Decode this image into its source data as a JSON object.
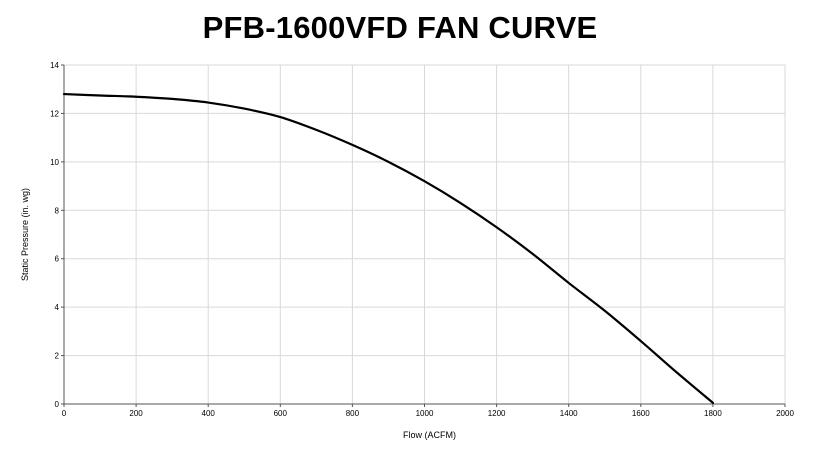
{
  "chart_data": {
    "type": "line",
    "title": "PFB-1600VFD FAN CURVE",
    "xlabel": "Flow (ACFM)",
    "ylabel": "Static Pressure (in. wg)",
    "xlim": [
      0,
      2000
    ],
    "ylim": [
      0,
      14
    ],
    "xticks": [
      "0",
      "200",
      "400",
      "600",
      "800",
      "1000",
      "1200",
      "1400",
      "1600",
      "1800",
      "2000"
    ],
    "yticks": [
      "0",
      "2",
      "4",
      "6",
      "8",
      "10",
      "12",
      "14"
    ],
    "grid": true,
    "series": [
      {
        "color": "#000000",
        "x": [
          0,
          100,
          200,
          300,
          400,
          500,
          600,
          700,
          800,
          900,
          1000,
          1100,
          1200,
          1300,
          1400,
          1500,
          1600,
          1700,
          1800
        ],
        "y": [
          12.8,
          12.74,
          12.69,
          12.6,
          12.45,
          12.2,
          11.85,
          11.32,
          10.7,
          10.0,
          9.2,
          8.3,
          7.3,
          6.2,
          5.0,
          3.85,
          2.6,
          1.3,
          0.05
        ]
      }
    ]
  }
}
